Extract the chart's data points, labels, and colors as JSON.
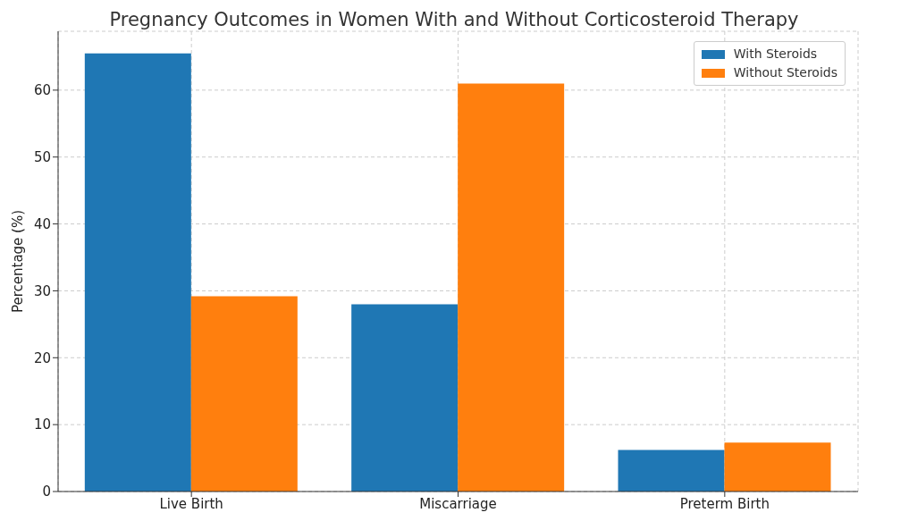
{
  "chart_data": {
    "type": "bar",
    "title": "Pregnancy Outcomes in Women With and Without Corticosteroid Therapy",
    "ylabel": "Percentage (%)",
    "categories": [
      "Live Birth",
      "Miscarriage",
      "Preterm Birth"
    ],
    "series": [
      {
        "name": "With Steroids",
        "color": "#1f77b4",
        "values": [
          65.5,
          28.0,
          6.2
        ]
      },
      {
        "name": "Without Steroids",
        "color": "#ff7f0e",
        "values": [
          29.2,
          61.0,
          7.3
        ]
      }
    ],
    "ylim": [
      0,
      68.8
    ],
    "yticks": [
      0,
      10,
      20,
      30,
      40,
      50,
      60
    ],
    "grid": true,
    "legend": "top right"
  }
}
